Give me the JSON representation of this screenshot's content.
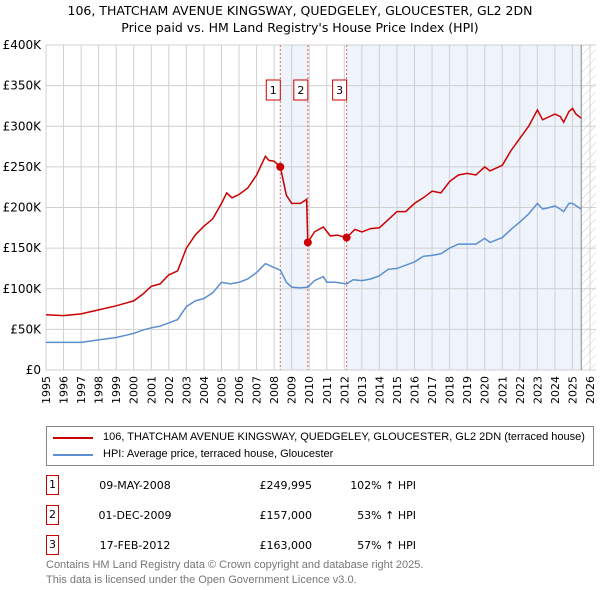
{
  "chart_data": {
    "type": "line",
    "title": "106, THATCHAM AVENUE KINGSWAY, QUEDGELEY, GLOUCESTER, GL2 2DN",
    "subtitle": "Price paid vs. HM Land Registry's House Price Index (HPI)",
    "xlim": [
      1995,
      2026
    ],
    "ylim": [
      0,
      400000
    ],
    "x_ticks": [
      "1995",
      "1996",
      "1997",
      "1998",
      "1999",
      "2000",
      "2001",
      "2002",
      "2003",
      "2004",
      "2005",
      "2006",
      "2007",
      "2008",
      "2009",
      "2010",
      "2011",
      "2012",
      "2013",
      "2014",
      "2015",
      "2016",
      "2017",
      "2018",
      "2019",
      "2020",
      "2021",
      "2022",
      "2023",
      "2024",
      "2025",
      "2026"
    ],
    "y_ticks": [
      {
        "v": 0,
        "label": "£0"
      },
      {
        "v": 50000,
        "label": "£50K"
      },
      {
        "v": 100000,
        "label": "£100K"
      },
      {
        "v": 150000,
        "label": "£150K"
      },
      {
        "v": 200000,
        "label": "£200K"
      },
      {
        "v": 250000,
        "label": "£250K"
      },
      {
        "v": 300000,
        "label": "£300K"
      },
      {
        "v": 350000,
        "label": "£350K"
      },
      {
        "v": 400000,
        "label": "£400K"
      }
    ],
    "grid": true,
    "shaded_ranges": [
      [
        2008.35,
        2009.92
      ],
      [
        2012.13,
        2025.5
      ]
    ],
    "hatched_from": 2025.5,
    "series": [
      {
        "name": "106, THATCHAM AVENUE KINGSWAY, QUEDGELEY, GLOUCESTER, GL2 2DN (terraced house)",
        "color": "#cc0000",
        "x": [
          1995,
          1996,
          1997,
          1998,
          1999,
          2000,
          2000.5,
          2001,
          2001.5,
          2002,
          2002.5,
          2003,
          2003.5,
          2004,
          2004.5,
          2005,
          2005.3,
          2005.6,
          2006,
          2006.5,
          2007,
          2007.5,
          2007.7,
          2008,
          2008.35,
          2008.7,
          2009,
          2009.5,
          2009.85,
          2009.92,
          2010.3,
          2010.8,
          2011.2,
          2011.6,
          2012.13,
          2012.6,
          2013,
          2013.5,
          2014,
          2014.5,
          2015,
          2015.5,
          2016,
          2016.5,
          2017,
          2017.5,
          2018,
          2018.5,
          2019,
          2019.5,
          2020,
          2020.3,
          2021,
          2021.5,
          2022,
          2022.5,
          2023,
          2023.3,
          2023.7,
          2024,
          2024.3,
          2024.5,
          2024.8,
          2025,
          2025.2,
          2025.5
        ],
        "y": [
          68000,
          67000,
          69000,
          74000,
          79000,
          85000,
          93000,
          103000,
          106000,
          117000,
          122000,
          150000,
          166000,
          177000,
          186000,
          205000,
          218000,
          212000,
          216000,
          224000,
          240000,
          263000,
          258000,
          257000,
          250000,
          215000,
          205000,
          205000,
          210000,
          157000,
          170000,
          176000,
          165000,
          166000,
          163000,
          173000,
          170000,
          174000,
          175000,
          185000,
          195000,
          195000,
          205000,
          212000,
          220000,
          218000,
          232000,
          240000,
          242000,
          240000,
          250000,
          245000,
          252000,
          270000,
          285000,
          300000,
          320000,
          308000,
          312000,
          315000,
          312000,
          305000,
          318000,
          322000,
          315000,
          310000
        ]
      },
      {
        "name": "HPI: Average price, terraced house, Gloucester",
        "color": "#5b8fd0",
        "x": [
          1995,
          1996,
          1997,
          1998,
          1999,
          2000,
          2000.5,
          2001,
          2001.5,
          2002,
          2002.5,
          2003,
          2003.5,
          2004,
          2004.5,
          2005,
          2005.5,
          2006,
          2006.5,
          2007,
          2007.5,
          2008,
          2008.35,
          2008.7,
          2009,
          2009.5,
          2009.92,
          2010.3,
          2010.8,
          2011,
          2011.5,
          2012.13,
          2012.5,
          2013,
          2013.5,
          2014,
          2014.5,
          2015,
          2016,
          2016.5,
          2017,
          2017.5,
          2018,
          2018.5,
          2019,
          2019.5,
          2020,
          2020.3,
          2021,
          2021.5,
          2022,
          2022.5,
          2023,
          2023.3,
          2023.7,
          2024,
          2024.3,
          2024.5,
          2024.8,
          2025,
          2025.5
        ],
        "y": [
          34000,
          34000,
          34000,
          37000,
          40000,
          45000,
          49000,
          52000,
          54000,
          58000,
          62000,
          78000,
          85000,
          88000,
          95000,
          108000,
          106000,
          108000,
          112000,
          120000,
          131000,
          126000,
          123000,
          108000,
          102000,
          101000,
          102000,
          110000,
          115000,
          108000,
          108000,
          106000,
          111000,
          110000,
          112000,
          116000,
          124000,
          125000,
          133000,
          140000,
          141000,
          143000,
          150000,
          155000,
          155000,
          155000,
          162000,
          157000,
          163000,
          173000,
          182000,
          192000,
          205000,
          198000,
          200000,
          202000,
          198000,
          195000,
          205000,
          205000,
          198000
        ]
      }
    ],
    "sales": [
      {
        "n": "1",
        "x": 2008.35,
        "y": 249995
      },
      {
        "n": "2",
        "x": 2009.92,
        "y": 157000
      },
      {
        "n": "3",
        "x": 2012.13,
        "y": 163000
      }
    ],
    "legend": "below"
  },
  "legend": {
    "property": "106, THATCHAM AVENUE KINGSWAY, QUEDGELEY, GLOUCESTER, GL2 2DN (terraced house)",
    "hpi": "HPI: Average price, terraced house, Gloucester"
  },
  "transactions": [
    {
      "n": "1",
      "date": "09-MAY-2008",
      "price": "£249,995",
      "hpi": "102% ↑ HPI"
    },
    {
      "n": "2",
      "date": "01-DEC-2009",
      "price": "£157,000",
      "hpi": "53% ↑ HPI"
    },
    {
      "n": "3",
      "date": "17-FEB-2012",
      "price": "£163,000",
      "hpi": "57% ↑ HPI"
    }
  ],
  "footer": {
    "line1": "Contains HM Land Registry data © Crown copyright and database right 2025.",
    "line2": "This data is licensed under the Open Government Licence v3.0."
  }
}
